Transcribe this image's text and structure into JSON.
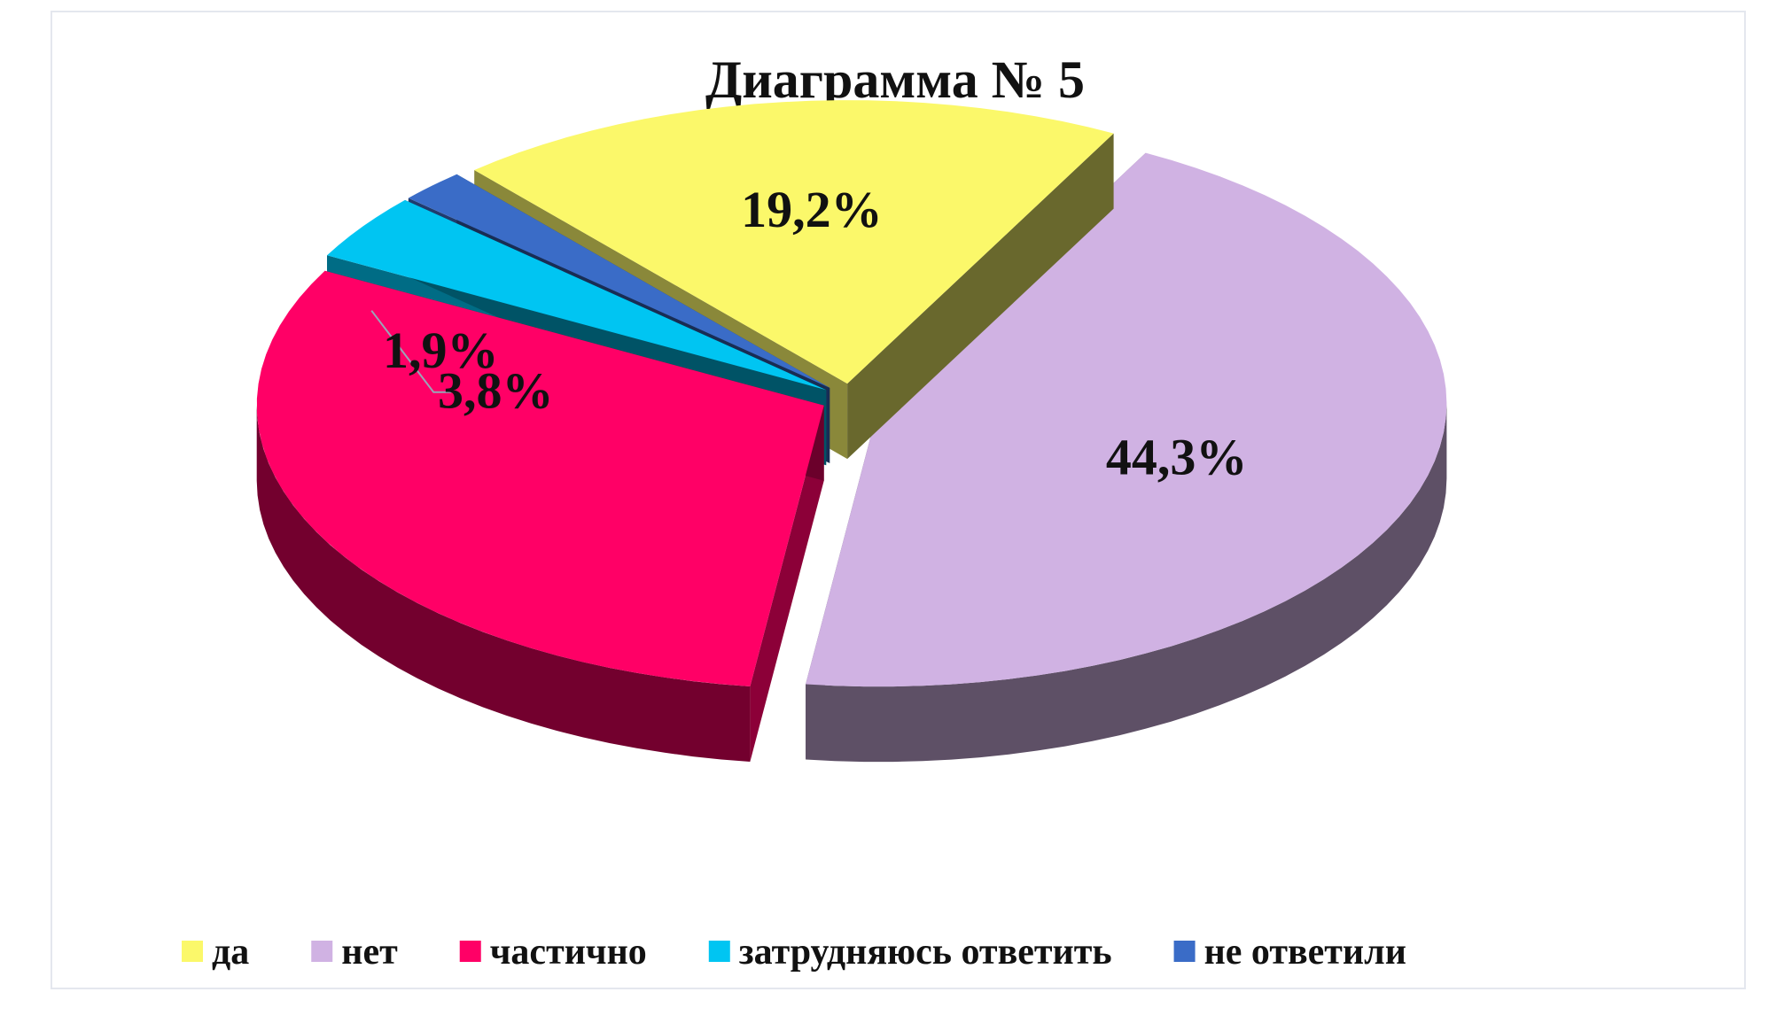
{
  "chart_data": {
    "type": "pie",
    "title": "Диаграмма № 5",
    "categories": [
      "да",
      "нет",
      "частично",
      "затрудняюсь ответить",
      "не ответили"
    ],
    "values": [
      19.2,
      44.3,
      30.8,
      3.8,
      1.9
    ],
    "data_labels": [
      "19,2%",
      "44,3%",
      "",
      "3,8%",
      "1,9%"
    ],
    "colors": [
      "#fbf86a",
      "#d0b2e3",
      "#ff0066",
      "#00c5f2",
      "#3a6cc7"
    ],
    "legend_position": "bottom",
    "style": "3d-exploded"
  }
}
